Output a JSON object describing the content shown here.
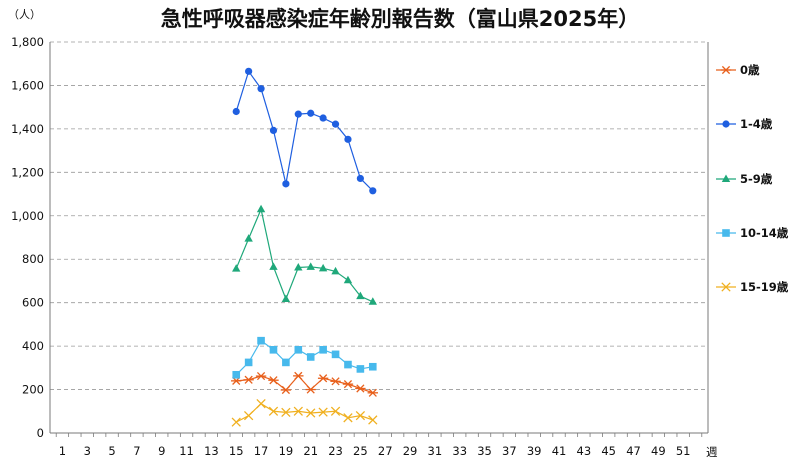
{
  "chart_data": {
    "type": "line",
    "title": "急性呼吸器感染症年齢別報告数（富山県2025年）",
    "ylabel": "（人）",
    "xlabel": "週",
    "ylim": [
      0,
      1800
    ],
    "xlim": [
      0,
      53
    ],
    "y_ticks": [
      0,
      200,
      400,
      600,
      800,
      1000,
      1200,
      1400,
      1600,
      1800
    ],
    "y_tick_labels": [
      "0",
      "200",
      "400",
      "600",
      "800",
      "1,000",
      "1,200",
      "1,400",
      "1,600",
      "1,800"
    ],
    "x_ticks": [
      1,
      3,
      5,
      7,
      9,
      11,
      13,
      15,
      17,
      19,
      21,
      23,
      25,
      27,
      29,
      31,
      33,
      35,
      37,
      39,
      41,
      43,
      45,
      47,
      49,
      51
    ],
    "x_tick_labels": [
      "1",
      "3",
      "5",
      "7",
      "9",
      "11",
      "13",
      "15",
      "17",
      "19",
      "21",
      "23",
      "25",
      "27",
      "29",
      "31",
      "33",
      "35",
      "37",
      "39",
      "41",
      "43",
      "45",
      "47",
      "49",
      "51"
    ],
    "grid": "horizontal dashed",
    "legend_position": "right",
    "x": [
      15,
      16,
      17,
      18,
      19,
      20,
      21,
      22,
      23,
      24,
      25,
      26
    ],
    "series": [
      {
        "name": "0歳",
        "color": "#e8601c",
        "marker": "asterisk",
        "values": [
          240,
          245,
          262,
          243,
          198,
          263,
          200,
          252,
          238,
          225,
          205,
          185
        ]
      },
      {
        "name": "1-4歳",
        "color": "#1f5fe0",
        "marker": "circle",
        "values": [
          1480,
          1665,
          1585,
          1393,
          1147,
          1468,
          1472,
          1450,
          1422,
          1352,
          1172,
          1115
        ]
      },
      {
        "name": "5-9歳",
        "color": "#1fa87a",
        "marker": "triangle",
        "values": [
          757,
          895,
          1030,
          765,
          617,
          762,
          765,
          758,
          744,
          703,
          630,
          604
        ]
      },
      {
        "name": "10-14歳",
        "color": "#47b9ec",
        "marker": "square",
        "values": [
          268,
          325,
          425,
          383,
          325,
          383,
          350,
          383,
          362,
          315,
          295,
          305
        ]
      },
      {
        "name": "15-19歳",
        "color": "#f0b020",
        "marker": "x",
        "values": [
          50,
          80,
          135,
          100,
          95,
          100,
          92,
          96,
          100,
          70,
          80,
          60
        ]
      }
    ]
  }
}
